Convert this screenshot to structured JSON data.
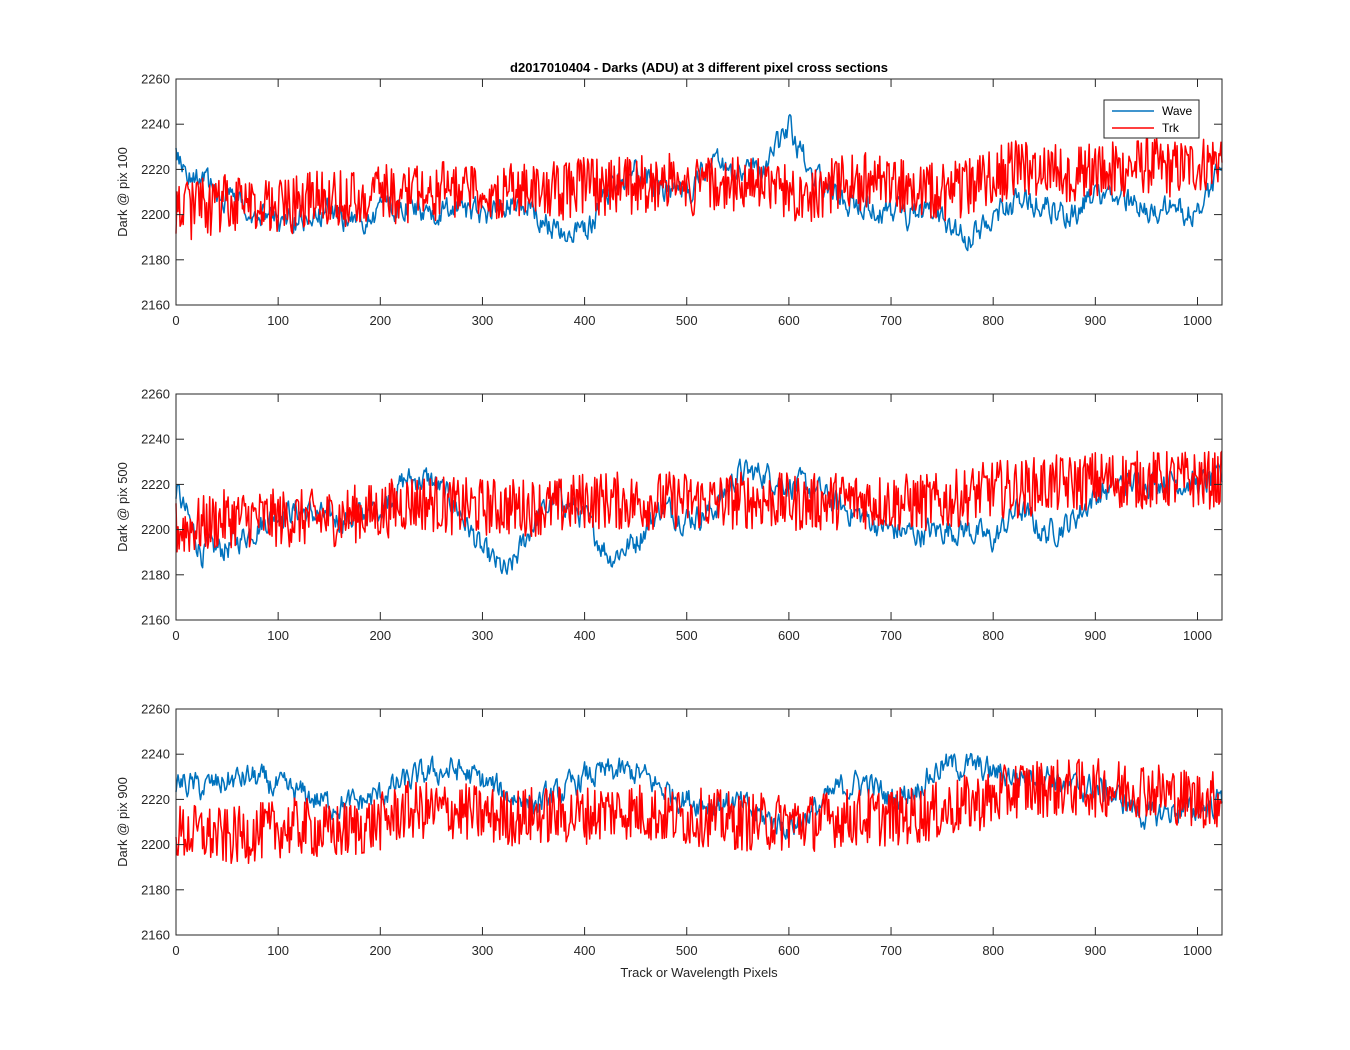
{
  "figure": {
    "title": "d2017010404 - Darks (ADU) at 3 different pixel cross sections",
    "xlabel": "Track or Wavelength Pixels"
  },
  "colors": {
    "wave": "#0072BD",
    "trk": "#FF0000",
    "axis": "#262626",
    "background": "#FFFFFF"
  },
  "chart_data": [
    {
      "type": "line",
      "title": "d2017010404 - Darks (ADU) at 3 different pixel cross sections",
      "xlabel": "",
      "ylabel": "Dark @ pix 100",
      "xlim": [
        0,
        1024
      ],
      "ylim": [
        2160,
        2260
      ],
      "xticks": [
        0,
        100,
        200,
        300,
        400,
        500,
        600,
        700,
        800,
        900,
        1000
      ],
      "yticks": [
        2160,
        2180,
        2200,
        2220,
        2240,
        2260
      ],
      "grid": false,
      "legend": "top-right",
      "series": [
        {
          "name": "Wave",
          "x": [
            0,
            25,
            50,
            75,
            100,
            125,
            150,
            175,
            200,
            225,
            250,
            275,
            300,
            325,
            350,
            375,
            400,
            425,
            450,
            475,
            500,
            525,
            550,
            575,
            600,
            625,
            650,
            675,
            700,
            725,
            750,
            775,
            800,
            825,
            850,
            875,
            900,
            925,
            950,
            975,
            1000,
            1024
          ],
          "values": [
            2225,
            2215,
            2208,
            2203,
            2195,
            2198,
            2200,
            2197,
            2203,
            2205,
            2198,
            2202,
            2200,
            2205,
            2203,
            2190,
            2192,
            2212,
            2220,
            2212,
            2210,
            2222,
            2218,
            2220,
            2238,
            2215,
            2207,
            2205,
            2200,
            2200,
            2198,
            2188,
            2200,
            2205,
            2205,
            2198,
            2210,
            2210,
            2200,
            2203,
            2200,
            2220
          ]
        },
        {
          "name": "Trk",
          "x": [
            0,
            25,
            50,
            75,
            100,
            125,
            150,
            175,
            200,
            225,
            250,
            275,
            300,
            325,
            350,
            375,
            400,
            425,
            450,
            475,
            500,
            525,
            550,
            575,
            600,
            625,
            650,
            675,
            700,
            725,
            750,
            775,
            800,
            825,
            850,
            875,
            900,
            925,
            950,
            975,
            1000,
            1024
          ],
          "values": [
            2200,
            2203,
            2205,
            2202,
            2203,
            2205,
            2208,
            2207,
            2210,
            2208,
            2210,
            2212,
            2210,
            2210,
            2212,
            2210,
            2213,
            2212,
            2213,
            2215,
            2212,
            2213,
            2213,
            2213,
            2210,
            2210,
            2213,
            2215,
            2213,
            2212,
            2210,
            2212,
            2218,
            2220,
            2220,
            2218,
            2220,
            2220,
            2222,
            2220,
            2222,
            2225
          ]
        }
      ]
    },
    {
      "type": "line",
      "title": "",
      "xlabel": "",
      "ylabel": "Dark @ pix 500",
      "xlim": [
        0,
        1024
      ],
      "ylim": [
        2160,
        2260
      ],
      "xticks": [
        0,
        100,
        200,
        300,
        400,
        500,
        600,
        700,
        800,
        900,
        1000
      ],
      "yticks": [
        2160,
        2180,
        2200,
        2220,
        2240,
        2260
      ],
      "grid": false,
      "series": [
        {
          "name": "Wave",
          "x": [
            0,
            25,
            50,
            75,
            100,
            125,
            150,
            175,
            200,
            225,
            250,
            275,
            300,
            325,
            350,
            375,
            400,
            425,
            450,
            475,
            500,
            525,
            550,
            575,
            600,
            625,
            650,
            675,
            700,
            725,
            750,
            775,
            800,
            825,
            850,
            875,
            900,
            925,
            950,
            975,
            1000,
            1024
          ],
          "values": [
            2218,
            2190,
            2192,
            2200,
            2208,
            2208,
            2205,
            2205,
            2210,
            2222,
            2222,
            2210,
            2190,
            2180,
            2203,
            2215,
            2205,
            2188,
            2195,
            2210,
            2205,
            2208,
            2225,
            2225,
            2220,
            2218,
            2210,
            2205,
            2200,
            2198,
            2200,
            2200,
            2195,
            2210,
            2198,
            2203,
            2215,
            2220,
            2222,
            2222,
            2220,
            2222
          ]
        },
        {
          "name": "Trk",
          "x": [
            0,
            25,
            50,
            75,
            100,
            125,
            150,
            175,
            200,
            225,
            250,
            275,
            300,
            325,
            350,
            375,
            400,
            425,
            450,
            475,
            500,
            525,
            550,
            575,
            600,
            625,
            650,
            675,
            700,
            725,
            750,
            775,
            800,
            825,
            850,
            875,
            900,
            925,
            950,
            975,
            1000,
            1024
          ],
          "values": [
            2200,
            2202,
            2205,
            2205,
            2205,
            2205,
            2205,
            2207,
            2208,
            2212,
            2212,
            2210,
            2210,
            2210,
            2210,
            2210,
            2213,
            2213,
            2212,
            2213,
            2213,
            2212,
            2213,
            2213,
            2212,
            2212,
            2213,
            2213,
            2212,
            2212,
            2212,
            2215,
            2218,
            2218,
            2220,
            2220,
            2222,
            2222,
            2222,
            2222,
            2222,
            2222
          ]
        }
      ]
    },
    {
      "type": "line",
      "title": "",
      "xlabel": "Track or Wavelength Pixels",
      "ylabel": "Dark @ pix 900",
      "xlim": [
        0,
        1024
      ],
      "ylim": [
        2160,
        2260
      ],
      "xticks": [
        0,
        100,
        200,
        300,
        400,
        500,
        600,
        700,
        800,
        900,
        1000
      ],
      "yticks": [
        2160,
        2180,
        2200,
        2220,
        2240,
        2260
      ],
      "grid": false,
      "series": [
        {
          "name": "Wave",
          "x": [
            0,
            25,
            50,
            75,
            100,
            125,
            150,
            175,
            200,
            225,
            250,
            275,
            300,
            325,
            350,
            375,
            400,
            425,
            450,
            475,
            500,
            525,
            550,
            575,
            600,
            625,
            650,
            675,
            700,
            725,
            750,
            775,
            800,
            825,
            850,
            875,
            900,
            925,
            950,
            975,
            1000,
            1024
          ],
          "values": [
            2228,
            2225,
            2228,
            2230,
            2225,
            2222,
            2218,
            2218,
            2222,
            2228,
            2232,
            2233,
            2228,
            2222,
            2218,
            2222,
            2230,
            2232,
            2232,
            2225,
            2220,
            2218,
            2218,
            2212,
            2208,
            2215,
            2225,
            2228,
            2220,
            2225,
            2235,
            2235,
            2232,
            2230,
            2232,
            2225,
            2225,
            2220,
            2212,
            2215,
            2215,
            2220
          ]
        },
        {
          "name": "Trk",
          "x": [
            0,
            25,
            50,
            75,
            100,
            125,
            150,
            175,
            200,
            225,
            250,
            275,
            300,
            325,
            350,
            375,
            400,
            425,
            450,
            475,
            500,
            525,
            550,
            575,
            600,
            625,
            650,
            675,
            700,
            725,
            750,
            775,
            800,
            825,
            850,
            875,
            900,
            925,
            950,
            975,
            1000,
            1024
          ],
          "values": [
            2205,
            2205,
            2203,
            2205,
            2207,
            2208,
            2205,
            2207,
            2210,
            2215,
            2215,
            2215,
            2213,
            2212,
            2213,
            2213,
            2213,
            2215,
            2215,
            2213,
            2212,
            2212,
            2210,
            2210,
            2210,
            2210,
            2212,
            2212,
            2212,
            2213,
            2215,
            2218,
            2220,
            2225,
            2225,
            2225,
            2225,
            2225,
            2225,
            2222,
            2220,
            2220
          ]
        }
      ]
    }
  ]
}
